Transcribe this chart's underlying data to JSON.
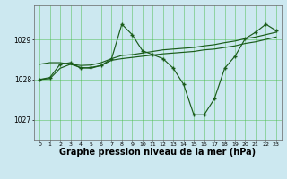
{
  "background_color": "#cce8f0",
  "grid_color": "#44bb44",
  "line_color": "#1a5c1a",
  "xlabel": "Graphe pression niveau de la mer (hPa)",
  "xlabel_fontsize": 7,
  "yticks": [
    1027,
    1028,
    1029
  ],
  "ylim": [
    1026.5,
    1029.85
  ],
  "xlim": [
    -0.5,
    23.5
  ],
  "xticks": [
    0,
    1,
    2,
    3,
    4,
    5,
    6,
    7,
    8,
    9,
    10,
    11,
    12,
    13,
    14,
    15,
    16,
    17,
    18,
    19,
    20,
    21,
    22,
    23
  ],
  "hours": [
    0,
    1,
    2,
    3,
    4,
    5,
    6,
    7,
    8,
    9,
    10,
    11,
    12,
    13,
    14,
    15,
    16,
    17,
    18,
    19,
    20,
    21,
    22,
    23
  ],
  "series1": [
    1028.0,
    1028.05,
    1028.38,
    1028.42,
    1028.28,
    1028.3,
    1028.35,
    1028.52,
    1029.38,
    1029.12,
    1028.72,
    1028.62,
    1028.52,
    1028.28,
    1027.88,
    1027.12,
    1027.12,
    1027.52,
    1028.28,
    1028.58,
    1029.02,
    1029.18,
    1029.38,
    1029.22
  ],
  "series2": [
    1028.38,
    1028.42,
    1028.42,
    1028.38,
    1028.35,
    1028.36,
    1028.42,
    1028.52,
    1028.6,
    1028.62,
    1028.66,
    1028.7,
    1028.74,
    1028.76,
    1028.78,
    1028.8,
    1028.84,
    1028.87,
    1028.92,
    1028.96,
    1029.02,
    1029.06,
    1029.12,
    1029.18
  ],
  "series3": [
    1028.0,
    1028.02,
    1028.28,
    1028.38,
    1028.3,
    1028.28,
    1028.35,
    1028.48,
    1028.52,
    1028.55,
    1028.58,
    1028.61,
    1028.64,
    1028.66,
    1028.68,
    1028.7,
    1028.74,
    1028.76,
    1028.8,
    1028.84,
    1028.9,
    1028.94,
    1029.0,
    1029.06
  ]
}
